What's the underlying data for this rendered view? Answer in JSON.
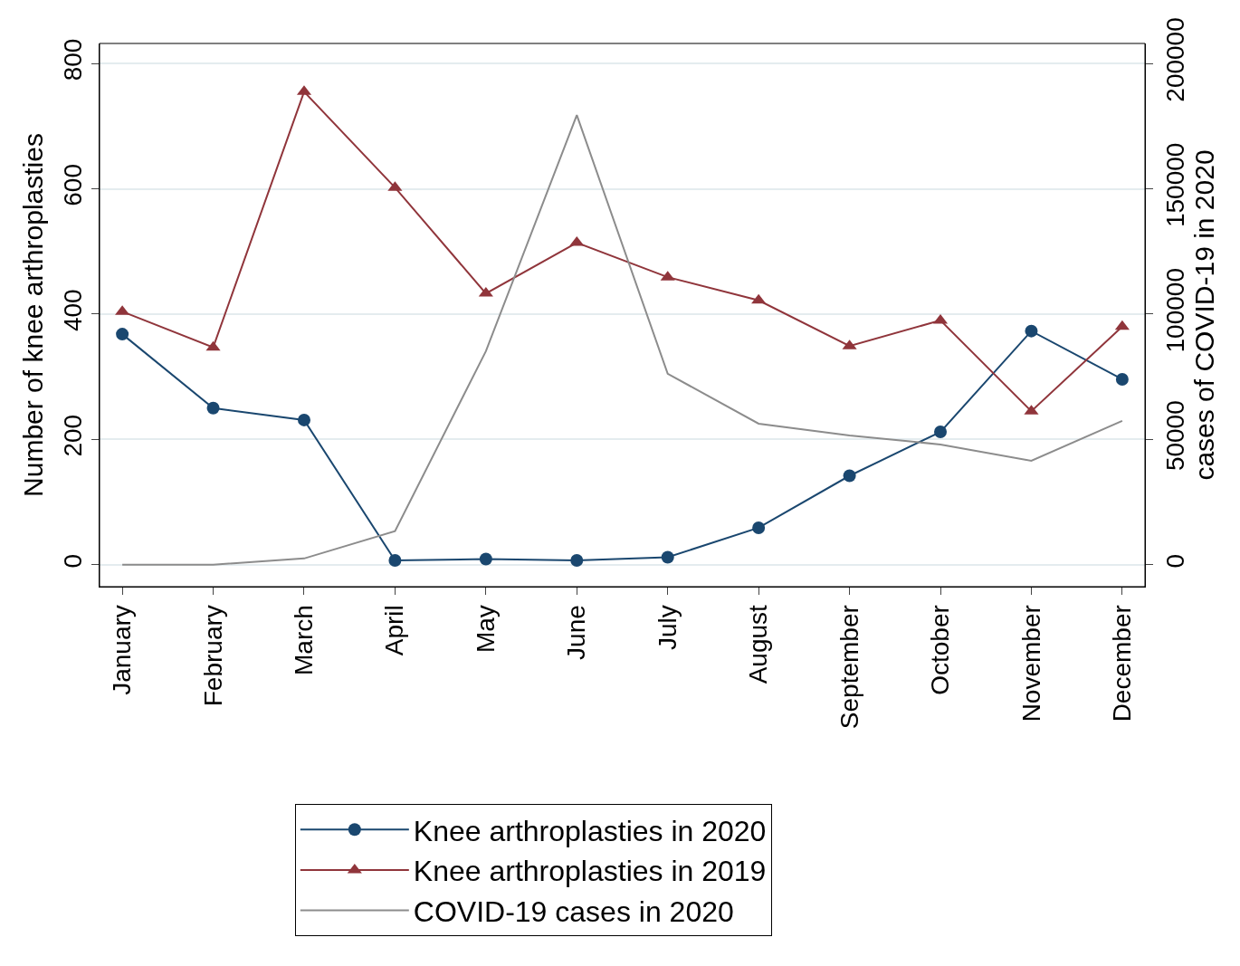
{
  "chart_data": {
    "type": "line",
    "xlabel": null,
    "ylabel": "Number of knee arthroplasties",
    "y2label": "cases of COVID-19 in 2020",
    "categories": [
      "January",
      "February",
      "March",
      "April",
      "May",
      "June",
      "July",
      "August",
      "September",
      "October",
      "November",
      "December"
    ],
    "series": [
      {
        "name": "Knee arthroplasties in 2020",
        "color": "#1a476f",
        "marker": "circle",
        "values": [
          368,
          250,
          231,
          7,
          9,
          7,
          12,
          59,
          142,
          212,
          373,
          296
        ]
      },
      {
        "name": "Knee arthroplasties in 2019",
        "color": "#90353b",
        "marker": "triangle",
        "values": [
          404,
          347,
          755,
          602,
          433,
          514,
          459,
          422,
          349,
          390,
          245,
          380
        ]
      },
      {
        "name": "COVID-19 cases in 2020",
        "color": "#8c8c8c",
        "marker": "none",
        "axis": "y2",
        "values": [
          0,
          0,
          2500,
          13400,
          85200,
          179400,
          76200,
          56300,
          51600,
          48000,
          41500,
          57400
        ]
      }
    ],
    "ylim": [
      -35,
      832
    ],
    "yticks": [
      0,
      200,
      400,
      600,
      800
    ],
    "y2lim": [
      -8750,
      208000
    ],
    "y2ticks": [
      0,
      50000,
      100000,
      150000,
      200000
    ],
    "grid": "y",
    "legend": "bottom"
  }
}
